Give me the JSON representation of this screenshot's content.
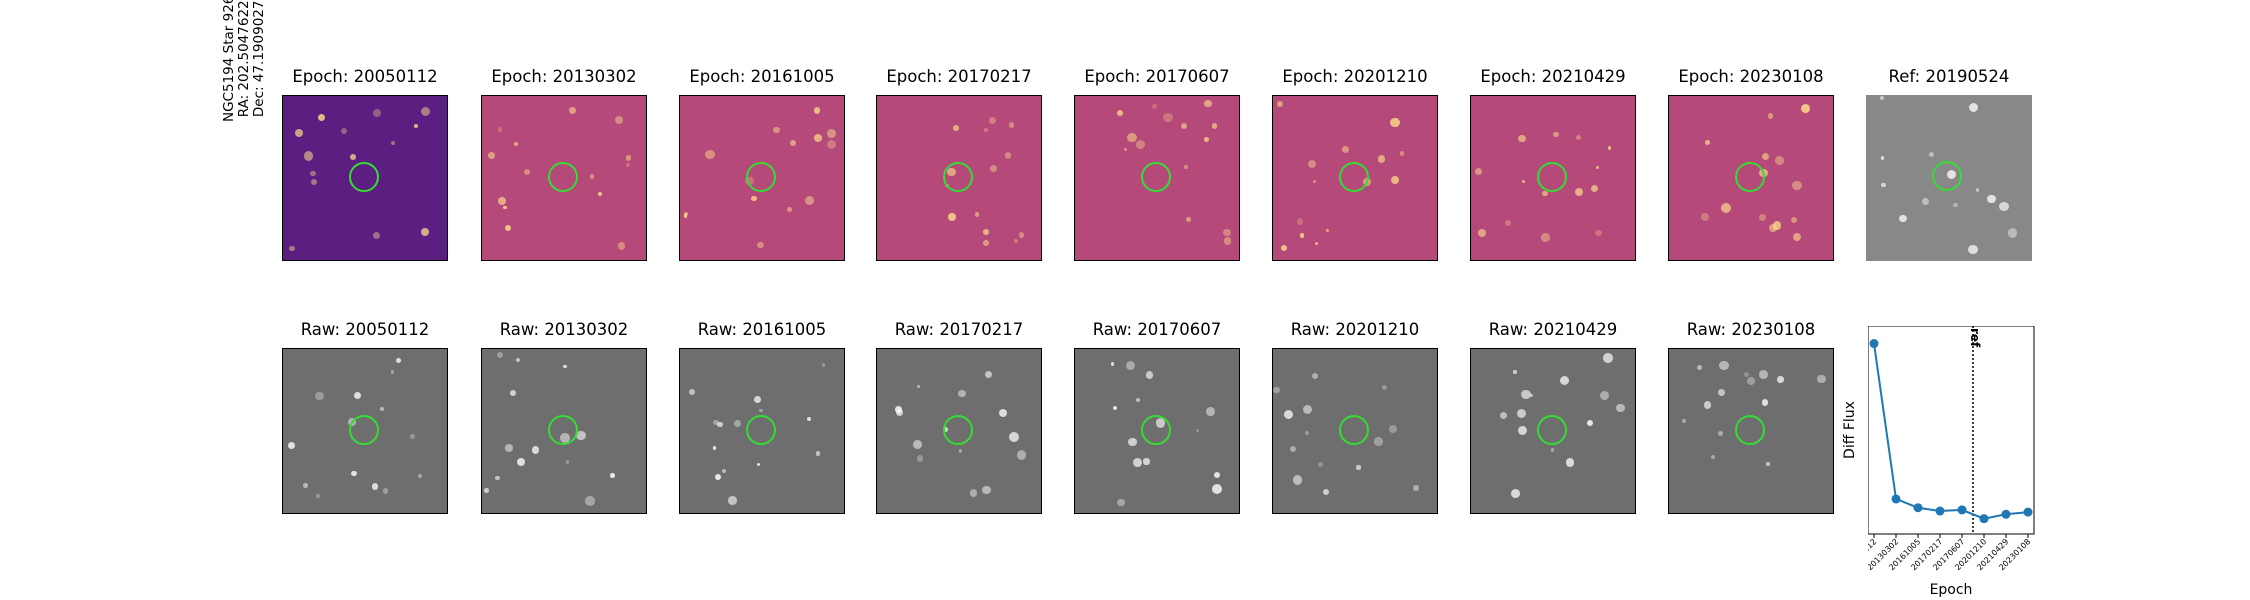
{
  "star_label": {
    "name": "NGC5194 Star 926",
    "ra": "RA: 202.5047622",
    "dec": "Dec: 47.1909027"
  },
  "diff_row": [
    {
      "title": "Epoch: 20050112"
    },
    {
      "title": "Epoch: 20130302"
    },
    {
      "title": "Epoch: 20161005"
    },
    {
      "title": "Epoch: 20170217"
    },
    {
      "title": "Epoch: 20170607"
    },
    {
      "title": "Epoch: 20201210"
    },
    {
      "title": "Epoch: 20210429"
    },
    {
      "title": "Epoch: 20230108"
    },
    {
      "title": "Ref: 20190524"
    }
  ],
  "raw_row": [
    {
      "title": "Raw: 20050112"
    },
    {
      "title": "Raw: 20130302"
    },
    {
      "title": "Raw: 20161005"
    },
    {
      "title": "Raw: 20170217"
    },
    {
      "title": "Raw: 20170607"
    },
    {
      "title": "Raw: 20201210"
    },
    {
      "title": "Raw: 20210429"
    },
    {
      "title": "Raw: 20230108"
    }
  ],
  "colors": {
    "diff_first": "#5a1f80",
    "diff_other": "#b5497a",
    "raw_bg": "#6e6e6e",
    "ref_bg": "#888888",
    "aperture": "#33dd33",
    "line": "#1f77b4"
  },
  "chart_data": {
    "type": "line",
    "x": [
      "20050112",
      "20130302",
      "20161005",
      "20170217",
      "20170607",
      "20201210",
      "20210429",
      "20230108"
    ],
    "y": [
      0.92,
      0.21,
      0.17,
      0.155,
      0.16,
      0.12,
      0.14,
      0.15
    ],
    "xlabel": "Epoch",
    "ylabel": "Diff Flux",
    "ref_marker": {
      "label": "ref",
      "position_between": [
        "20170607",
        "20201210"
      ]
    },
    "ylim": [
      0.05,
      1.0
    ]
  }
}
